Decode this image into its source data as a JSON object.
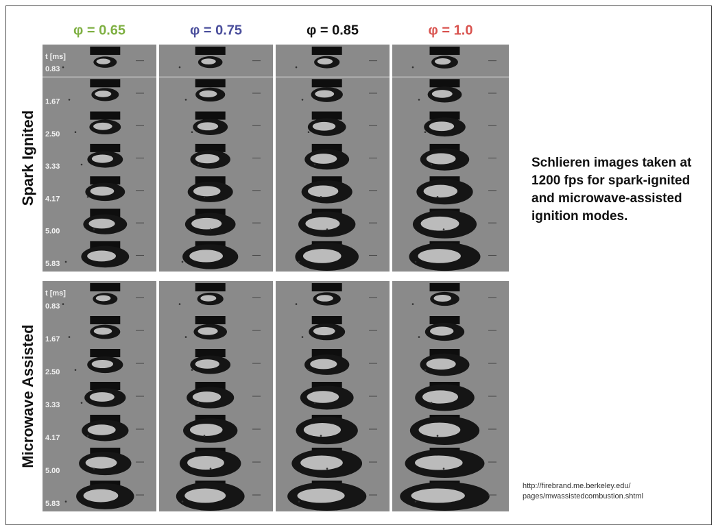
{
  "columns": [
    {
      "label": "φ = 0.65",
      "color": "#7fb043"
    },
    {
      "label": "φ = 0.75",
      "color": "#4b4f9c"
    },
    {
      "label": "φ = 0.85",
      "color": "#111111"
    },
    {
      "label": "φ = 1.0",
      "color": "#d9534f"
    }
  ],
  "sections": [
    {
      "label": "Spark Ignited",
      "time_header": "t [ms]",
      "times": [
        "0.83",
        "1.67",
        "2.50",
        "3.33",
        "4.17",
        "5.00",
        "5.83"
      ]
    },
    {
      "label": "Microwave Assisted",
      "time_header": "t [ms]",
      "times": [
        "0.83",
        "1.67",
        "2.50",
        "3.33",
        "4.17",
        "5.00",
        "5.83"
      ]
    }
  ],
  "caption": "Schlieren images taken at 1200 fps for spark-ignited and microwave-assisted ignition modes.",
  "source": [
    "http://firebrand.me.berkeley.edu/",
    "pages/mwassistedcombustion.shtml"
  ]
}
